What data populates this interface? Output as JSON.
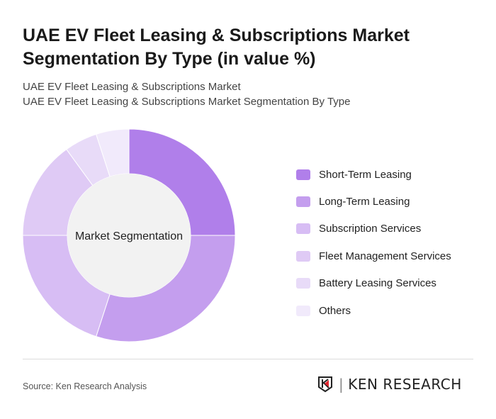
{
  "title": "UAE EV Fleet Leasing & Subscriptions Market Segmentation By Type (in value %)",
  "subtitle1": "UAE EV Fleet Leasing & Subscriptions Market",
  "subtitle2": "UAE EV Fleet Leasing & Subscriptions Market Segmentation By Type",
  "source": "Source: Ken Research Analysis",
  "logo_text": "KEN RESEARCH",
  "chart_data": {
    "type": "pie",
    "donut": true,
    "center_label": "Market Segmentation",
    "legend_position": "right",
    "categories": [
      "Short-Term Leasing",
      "Long-Term Leasing",
      "Subscription Services",
      "Fleet Management Services",
      "Battery Leasing Services",
      "Others"
    ],
    "values": [
      25,
      30,
      20,
      15,
      5,
      5
    ],
    "colors": [
      "#b07fea",
      "#c49eee",
      "#d7bdf4",
      "#dfcaf5",
      "#e8dbf8",
      "#f1eafb"
    ]
  }
}
